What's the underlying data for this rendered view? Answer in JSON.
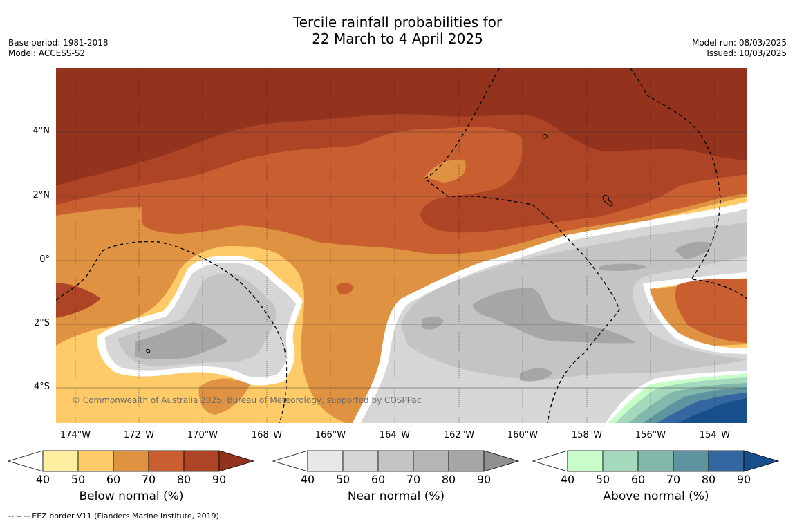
{
  "title": {
    "line1": "Tercile rainfall probabilities for",
    "line2": "22 March to 4 April 2025"
  },
  "meta_left": {
    "base_period": "Base period: 1981-2018",
    "model": "Model: ACCESS-S2"
  },
  "meta_right": {
    "model_run": "Model run: 08/03/2025",
    "issued": "Issued: 10/03/2025"
  },
  "map": {
    "longitude_labels": [
      "174°W",
      "172°W",
      "170°W",
      "168°W",
      "166°W",
      "164°W",
      "162°W",
      "160°W",
      "158°W",
      "156°W",
      "154°W"
    ],
    "latitude_labels": [
      "4°N",
      "2°N",
      "0°",
      "2°S",
      "4°S"
    ],
    "copyright": "© Commonwealth of Australia 2025, Bureau of Meteorology, supported by COSPPac"
  },
  "legends": [
    {
      "title": "Below normal (%)",
      "ticks": [
        "40",
        "50",
        "60",
        "70",
        "80",
        "90"
      ],
      "colors": [
        "#fdeea0",
        "#fecb68",
        "#e09243",
        "#c95f30",
        "#ae4426",
        "#93331e"
      ]
    },
    {
      "title": "Near normal (%)",
      "ticks": [
        "40",
        "50",
        "60",
        "70",
        "80",
        "90"
      ],
      "colors": [
        "#e8e8e8",
        "#d6d6d6",
        "#c4c4c4",
        "#b5b5b5",
        "#a6a6a6",
        "#8f8f8f"
      ]
    },
    {
      "title": "Above normal (%)",
      "ticks": [
        "40",
        "50",
        "60",
        "70",
        "80",
        "90"
      ],
      "colors": [
        "#c8fcc8",
        "#a4d9bd",
        "#82b7ac",
        "#5e93a0",
        "#3466a0",
        "#174f8c"
      ]
    }
  ],
  "footnote": "--  --  -- EEZ border V11 (Flanders Marine Institute, 2019)."
}
